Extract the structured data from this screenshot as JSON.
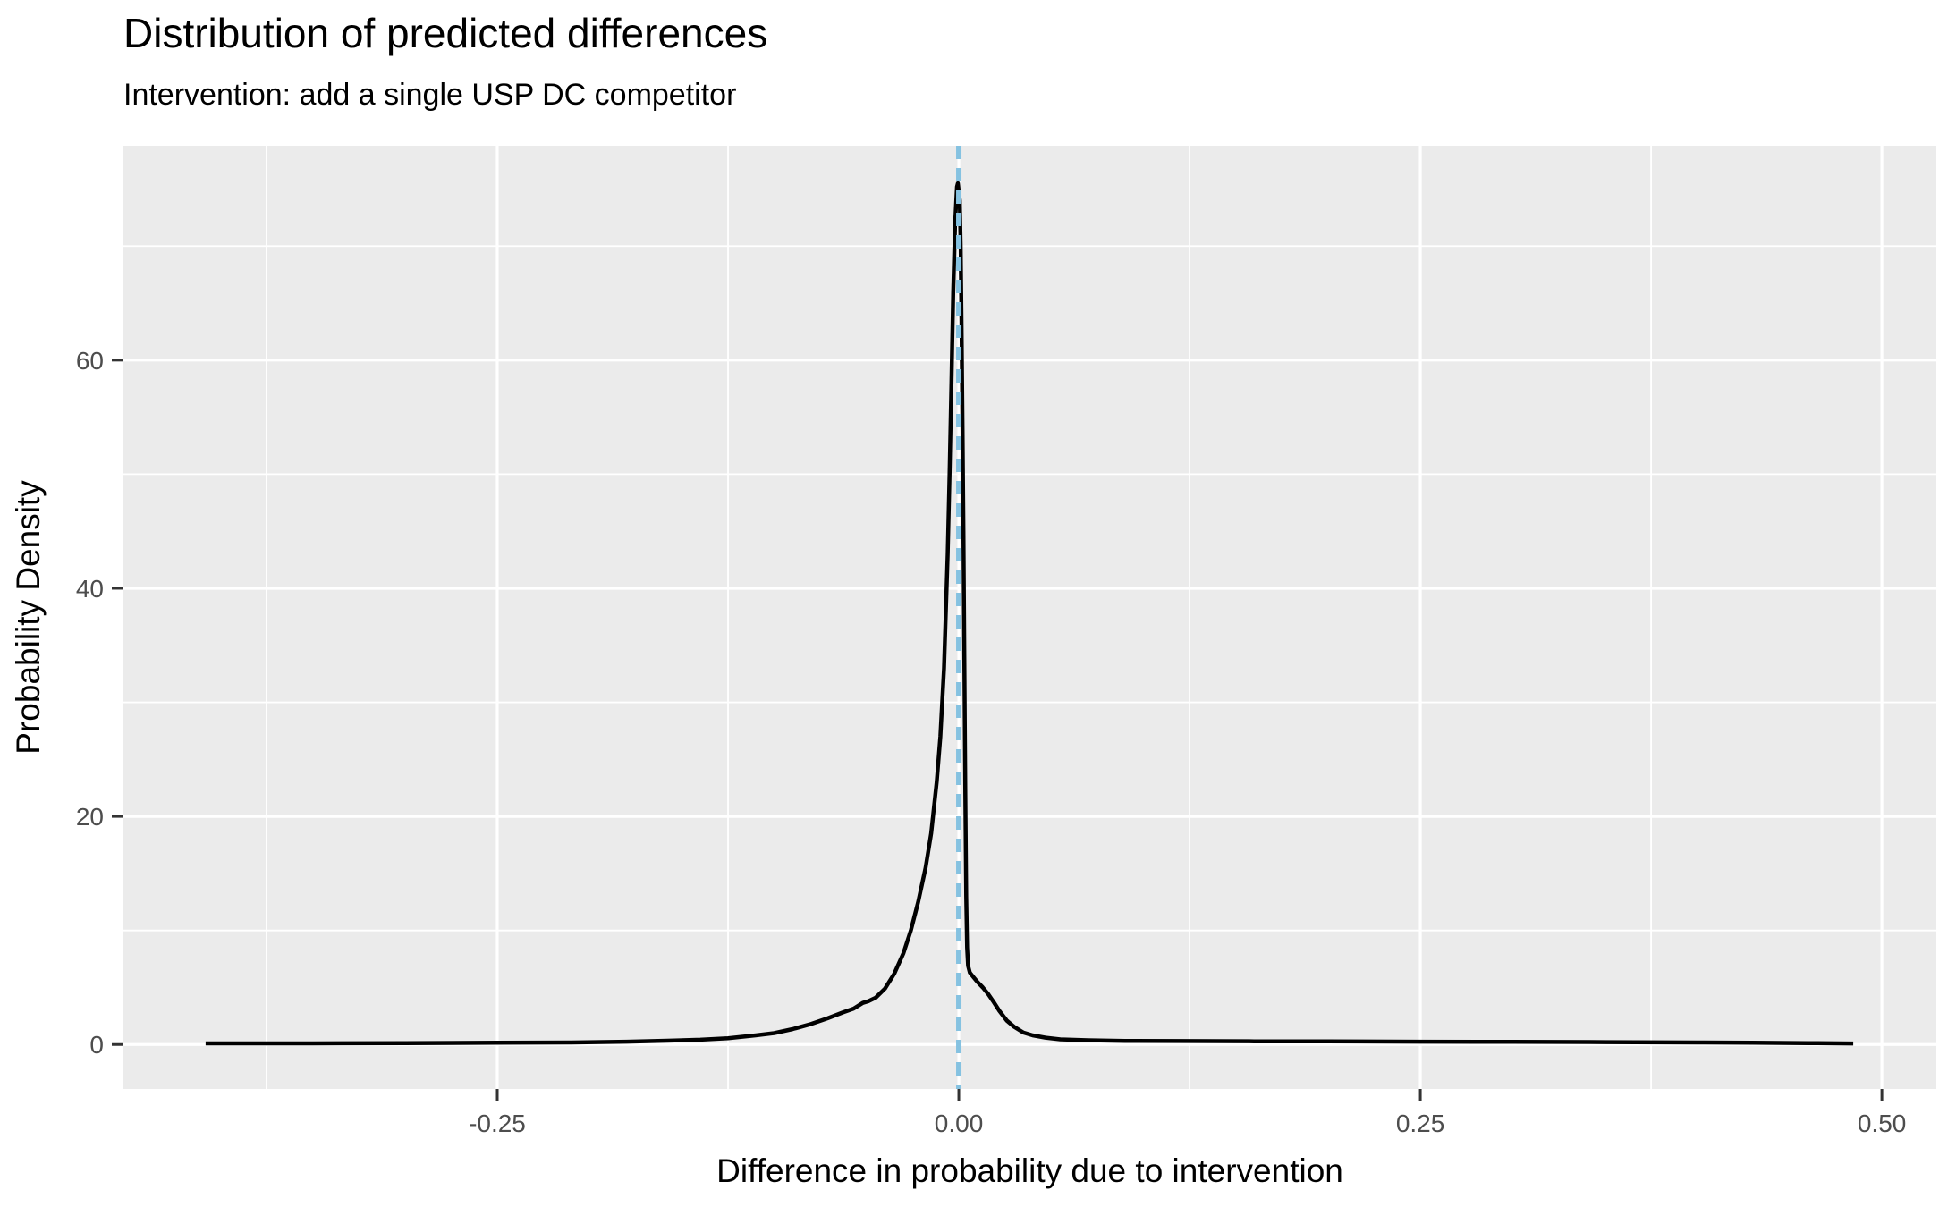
{
  "title": "Distribution of predicted differences",
  "subtitle": "Intervention: add a single USP DC competitor",
  "chart_data": {
    "type": "line",
    "subtype": "density",
    "title": "Distribution of predicted differences",
    "subtitle": "Intervention: add a single USP DC competitor",
    "xlabel": "Difference in probability due to intervention",
    "ylabel": "Probability Density",
    "xlim": [
      -0.4525,
      0.5295
    ],
    "ylim": [
      -3.9,
      78.8
    ],
    "grid": true,
    "legend_position": "none",
    "x_ticks": [
      {
        "v": -0.25,
        "label": "-0.25"
      },
      {
        "v": 0.0,
        "label": "0.00"
      },
      {
        "v": 0.25,
        "label": "0.25"
      },
      {
        "v": 0.5,
        "label": "0.50"
      }
    ],
    "y_ticks": [
      {
        "v": 0,
        "label": "0"
      },
      {
        "v": 20,
        "label": "20"
      },
      {
        "v": 40,
        "label": "40"
      },
      {
        "v": 60,
        "label": "60"
      }
    ],
    "x_minor": [
      -0.375,
      -0.125,
      0.125,
      0.375
    ],
    "y_minor": [
      10,
      30,
      50,
      70
    ],
    "vline": {
      "x": 0.0,
      "style": "dashed",
      "color": "#85C2E1"
    },
    "colors": {
      "panel_bg": "#EBEBEB",
      "gridline": "#FFFFFF",
      "tick_label": "#4D4D4D",
      "tick_mark": "#333333",
      "curve": "#000000",
      "axis_title": "#000000",
      "vline": "#85C2E1"
    },
    "series": [
      {
        "name": "density of predicted differences",
        "color": "#000000",
        "points": [
          [
            -0.408,
            0.1
          ],
          [
            -0.35,
            0.1
          ],
          [
            -0.3,
            0.12
          ],
          [
            -0.25,
            0.15
          ],
          [
            -0.21,
            0.18
          ],
          [
            -0.18,
            0.25
          ],
          [
            -0.158,
            0.33
          ],
          [
            -0.14,
            0.42
          ],
          [
            -0.125,
            0.55
          ],
          [
            -0.11,
            0.8
          ],
          [
            -0.1,
            1.0
          ],
          [
            -0.09,
            1.35
          ],
          [
            -0.08,
            1.8
          ],
          [
            -0.071,
            2.3
          ],
          [
            -0.063,
            2.8
          ],
          [
            -0.057,
            3.15
          ],
          [
            -0.052,
            3.65
          ],
          [
            -0.049,
            3.8
          ],
          [
            -0.045,
            4.1
          ],
          [
            -0.04,
            4.9
          ],
          [
            -0.035,
            6.2
          ],
          [
            -0.03,
            8.0
          ],
          [
            -0.026,
            10.0
          ],
          [
            -0.022,
            12.5
          ],
          [
            -0.018,
            15.5
          ],
          [
            -0.015,
            18.5
          ],
          [
            -0.012,
            23
          ],
          [
            -0.01,
            27
          ],
          [
            -0.008,
            33
          ],
          [
            -0.006,
            43
          ],
          [
            -0.005,
            50
          ],
          [
            -0.004,
            58
          ],
          [
            -0.003,
            66
          ],
          [
            -0.002,
            72
          ],
          [
            -0.001,
            75.2
          ],
          [
            -0.0005,
            75.5
          ],
          [
            0.0005,
            74
          ],
          [
            0.001,
            70
          ],
          [
            0.0015,
            63
          ],
          [
            0.002,
            54
          ],
          [
            0.0025,
            45
          ],
          [
            0.003,
            34
          ],
          [
            0.0035,
            22
          ],
          [
            0.004,
            13
          ],
          [
            0.0045,
            8.5
          ],
          [
            0.005,
            6.9
          ],
          [
            0.006,
            6.3
          ],
          [
            0.008,
            5.9
          ],
          [
            0.01,
            5.5
          ],
          [
            0.013,
            5.0
          ],
          [
            0.016,
            4.4
          ],
          [
            0.019,
            3.7
          ],
          [
            0.022,
            2.95
          ],
          [
            0.026,
            2.1
          ],
          [
            0.03,
            1.55
          ],
          [
            0.035,
            1.05
          ],
          [
            0.04,
            0.8
          ],
          [
            0.047,
            0.6
          ],
          [
            0.055,
            0.45
          ],
          [
            0.07,
            0.37
          ],
          [
            0.09,
            0.32
          ],
          [
            0.12,
            0.3
          ],
          [
            0.16,
            0.28
          ],
          [
            0.2,
            0.27
          ],
          [
            0.25,
            0.25
          ],
          [
            0.3,
            0.23
          ],
          [
            0.35,
            0.21
          ],
          [
            0.4,
            0.18
          ],
          [
            0.43,
            0.16
          ],
          [
            0.46,
            0.12
          ],
          [
            0.478,
            0.1
          ],
          [
            0.4845,
            0.09
          ]
        ]
      }
    ]
  }
}
